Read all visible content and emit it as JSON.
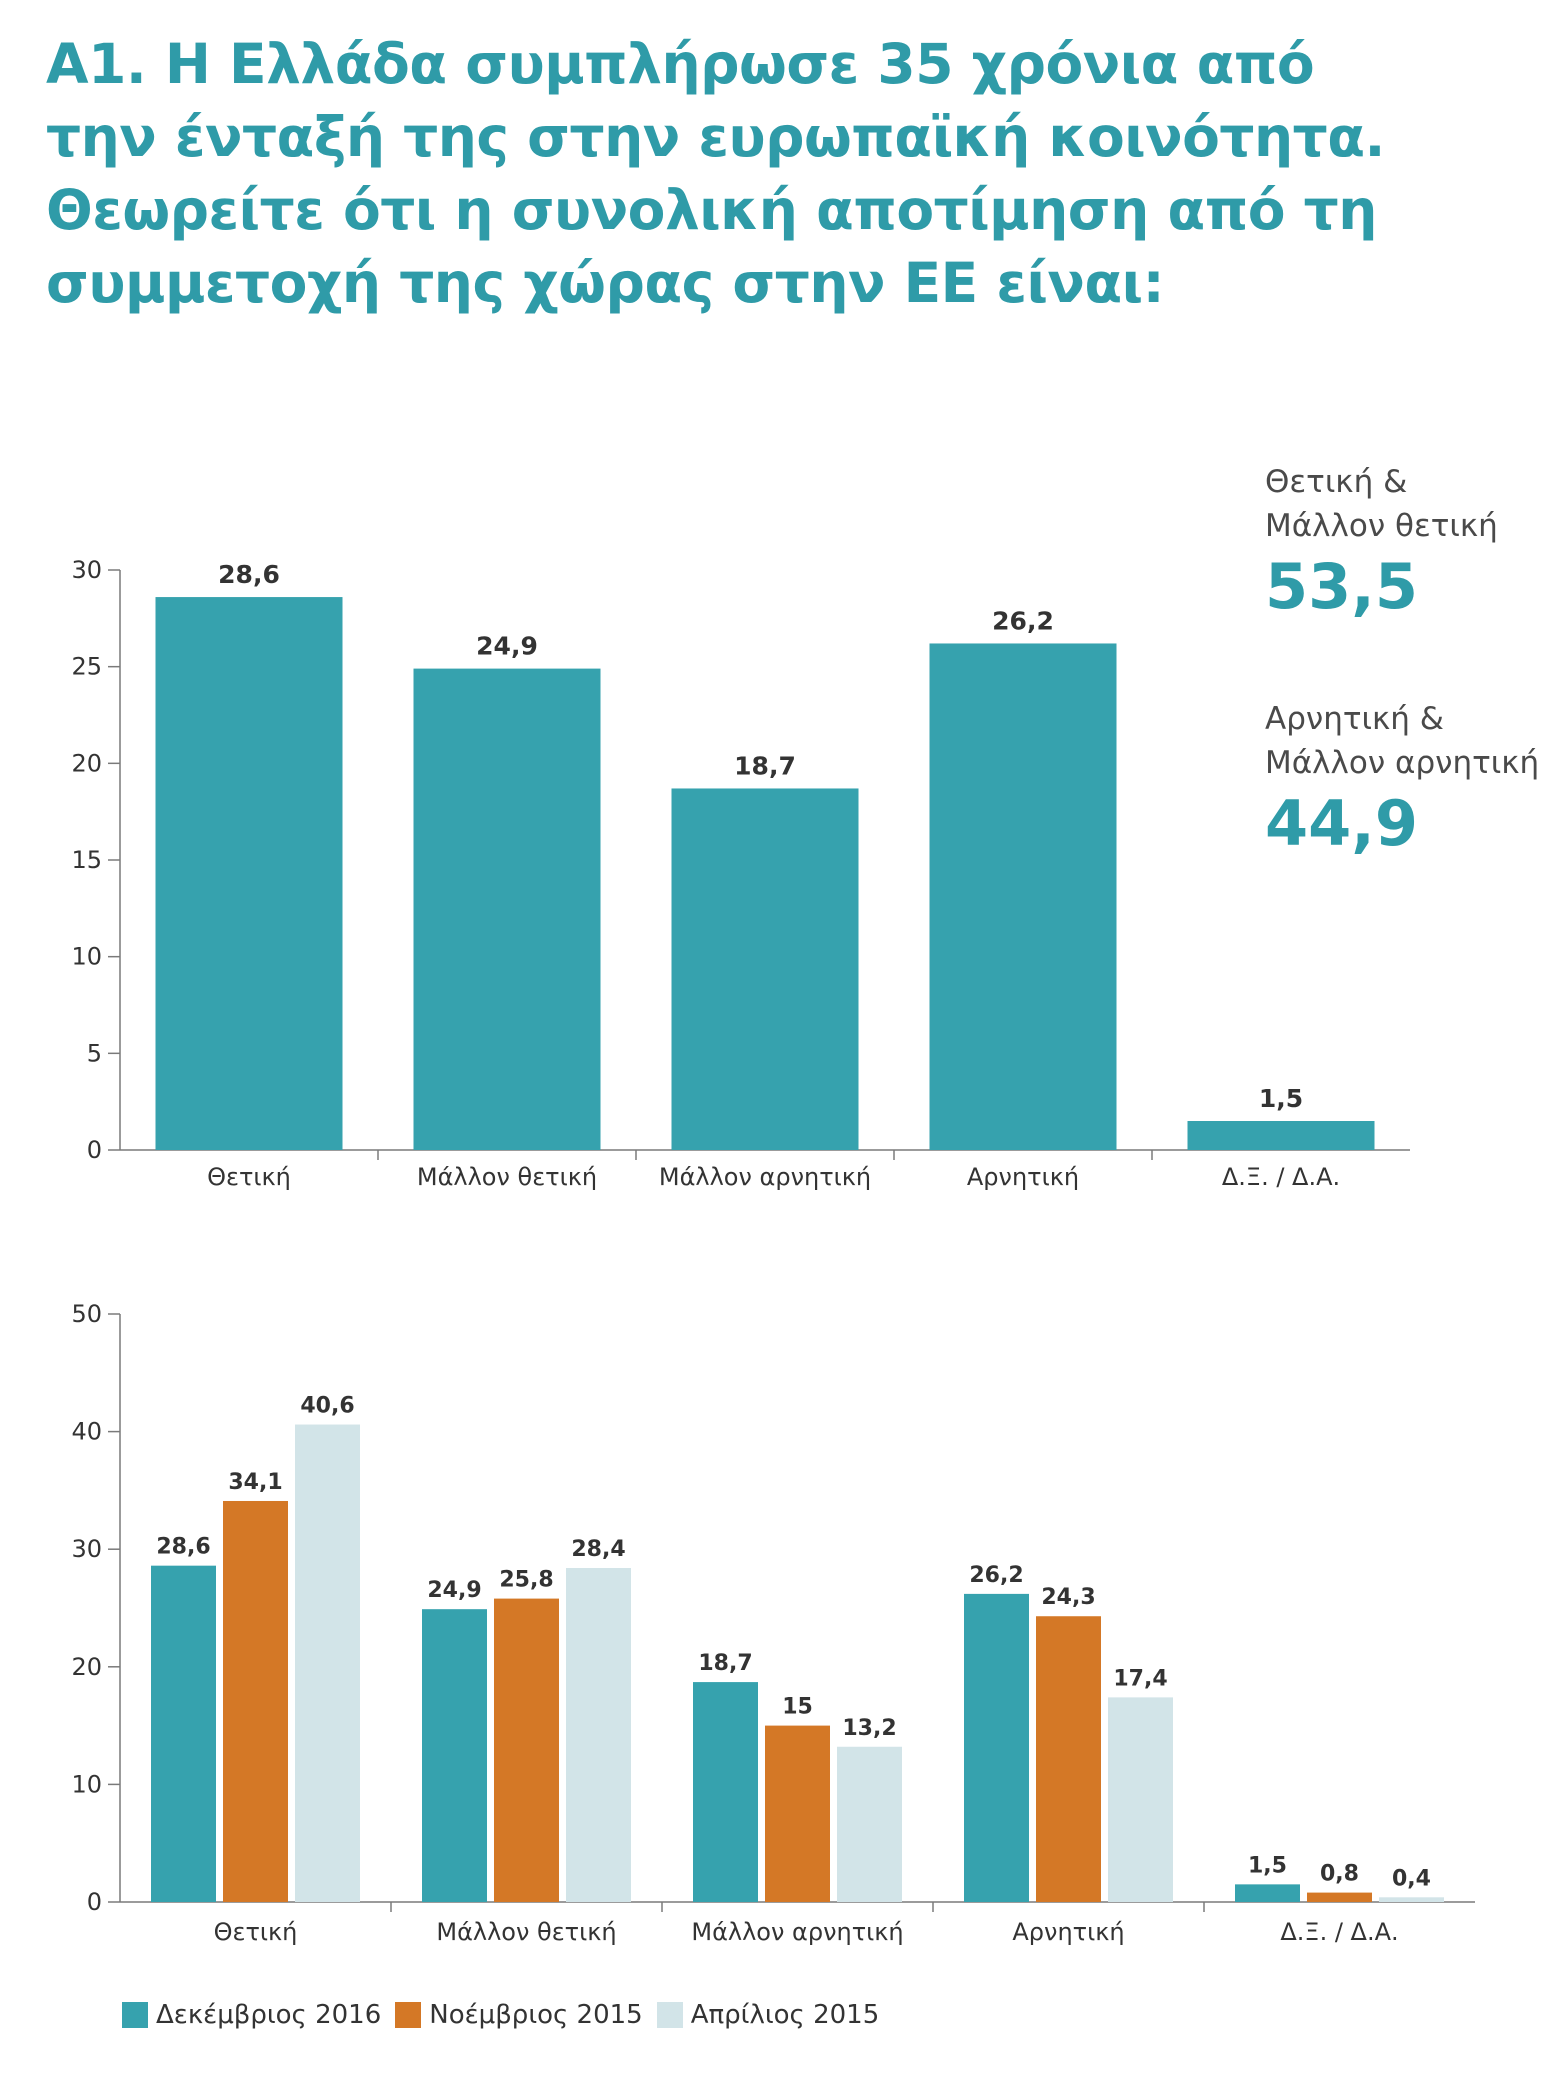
{
  "title_lines": [
    "Α1. Η Ελλάδα συμπλήρωσε 35 χρόνια από",
    "την ένταξή της στην ευρωπαϊκή κοινότητα.",
    "Θεωρείτε ότι η συνολική αποτίμηση από τη",
    "συμμετοχή της χώρας στην ΕΕ είναι:"
  ],
  "summary": {
    "positive": {
      "label_line1": "Θετική &",
      "label_line2": "Μάλλον θετική",
      "value": "53,5"
    },
    "negative": {
      "label_line1": "Αρνητική &",
      "label_line2": "Μάλλον αρνητική",
      "value": "44,9"
    }
  },
  "colors": {
    "teal": "#36a2ae",
    "orange": "#d47826",
    "light": "#d2e4e8",
    "title": "#2f9ba8"
  },
  "chart_data": [
    {
      "type": "bar",
      "categories": [
        "Θετική",
        "Μάλλον θετική",
        "Μάλλον αρνητική",
        "Αρνητική",
        "Δ.Ξ. / Δ.Α."
      ],
      "values": [
        28.6,
        24.9,
        18.7,
        26.2,
        1.5
      ],
      "value_labels": [
        "28,6",
        "24,9",
        "18,7",
        "26,2",
        "1,5"
      ],
      "ylim": [
        0,
        30
      ],
      "yticks": [
        "0",
        "5",
        "10",
        "15",
        "20",
        "25",
        "30"
      ],
      "color": "#36a2ae"
    },
    {
      "type": "bar",
      "categories": [
        "Θετική",
        "Μάλλον θετική",
        "Μάλλον αρνητική",
        "Αρνητική",
        "Δ.Ξ. / Δ.Α."
      ],
      "series": [
        {
          "name": "Δεκέμβριος 2016",
          "color": "#36a2ae",
          "values": [
            28.6,
            24.9,
            18.7,
            26.2,
            1.5
          ],
          "value_labels": [
            "28,6",
            "24,9",
            "18,7",
            "26,2",
            "1,5"
          ]
        },
        {
          "name": "Νοέμβριος 2015",
          "color": "#d47826",
          "values": [
            34.1,
            25.8,
            15,
            24.3,
            0.8
          ],
          "value_labels": [
            "34,1",
            "25,8",
            "15",
            "24,3",
            "0,8"
          ]
        },
        {
          "name": "Απρίλιος 2015",
          "color": "#d2e4e8",
          "values": [
            40.6,
            28.4,
            13.2,
            17.4,
            0.4
          ],
          "value_labels": [
            "40,6",
            "28,4",
            "13,2",
            "17,4",
            "0,4"
          ]
        }
      ],
      "ylim": [
        0,
        50
      ],
      "yticks": [
        "0",
        "10",
        "20",
        "30",
        "40",
        "50"
      ],
      "legend_position": "bottom-left"
    }
  ]
}
